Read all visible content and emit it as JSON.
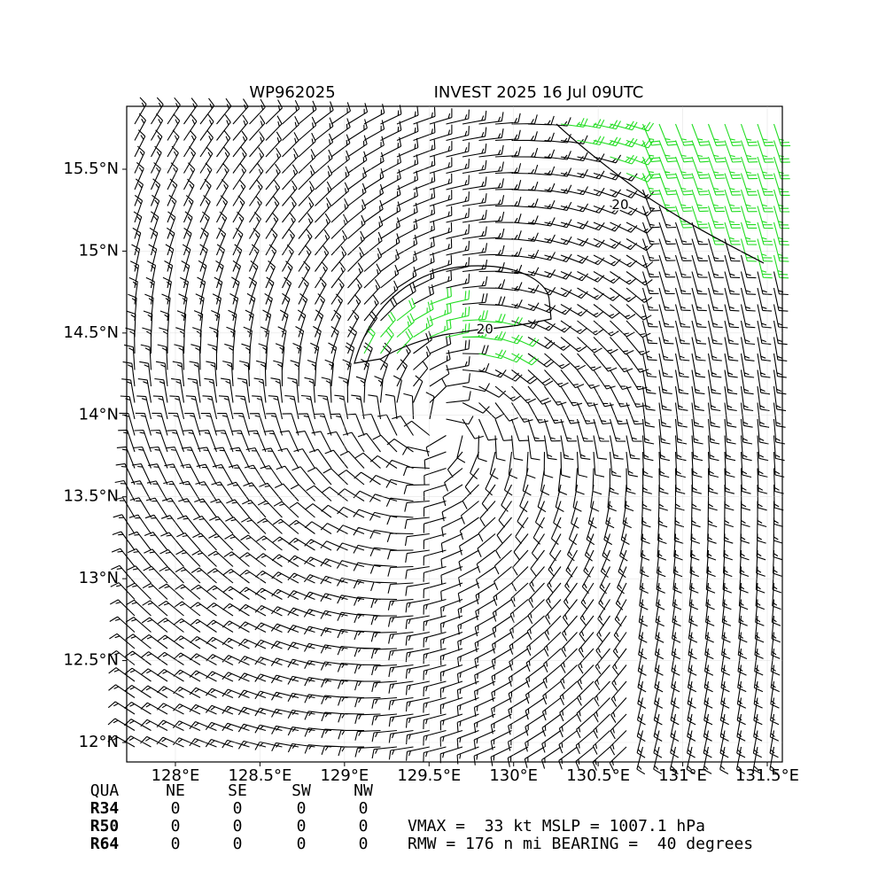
{
  "chart_data": {
    "type": "barb",
    "title_left": "WP962025",
    "title_right": "INVEST 2025 16 Jul 09UTC",
    "xlim": [
      127.712,
      131.589
    ],
    "ylim": [
      11.881,
      15.884
    ],
    "xticks": [
      {
        "value": 128,
        "label": "128°E"
      },
      {
        "value": 128.5,
        "label": "128.5°E"
      },
      {
        "value": 129,
        "label": "129°E"
      },
      {
        "value": 129.5,
        "label": "129.5°E"
      },
      {
        "value": 130,
        "label": "130°E"
      },
      {
        "value": 130.5,
        "label": "130.5°E"
      },
      {
        "value": 131,
        "label": "131°E"
      },
      {
        "value": 131.5,
        "label": "131.5°E"
      }
    ],
    "yticks": [
      {
        "value": 12,
        "label": "12°N"
      },
      {
        "value": 12.5,
        "label": "12.5°N"
      },
      {
        "value": 13,
        "label": "13°N"
      },
      {
        "value": 13.5,
        "label": "13.5°N"
      },
      {
        "value": 14,
        "label": "14°N"
      },
      {
        "value": 14.5,
        "label": "14.5°N"
      },
      {
        "value": 15,
        "label": "15°N"
      },
      {
        "value": 15.5,
        "label": "15.5°N"
      }
    ],
    "grid": true,
    "contour_labels": [
      {
        "text": "20",
        "x": 129.83,
        "y": 14.52
      },
      {
        "text": "20",
        "x": 130.63,
        "y": 15.28
      }
    ],
    "barb_color": "#000000",
    "highlight_color": "#22dd22"
  },
  "table": {
    "header": [
      "QUA",
      "NE",
      "SE",
      "SW",
      "NW"
    ],
    "rows": [
      [
        "R34",
        0,
        0,
        0,
        0
      ],
      [
        "R50",
        0,
        0,
        0,
        0
      ],
      [
        "R64",
        0,
        0,
        0,
        0
      ]
    ]
  },
  "info": [
    "VMAX =  33 kt MSLP = 1007.1 hPa",
    "RMW = 176 n mi BEARING =  40 degrees"
  ]
}
